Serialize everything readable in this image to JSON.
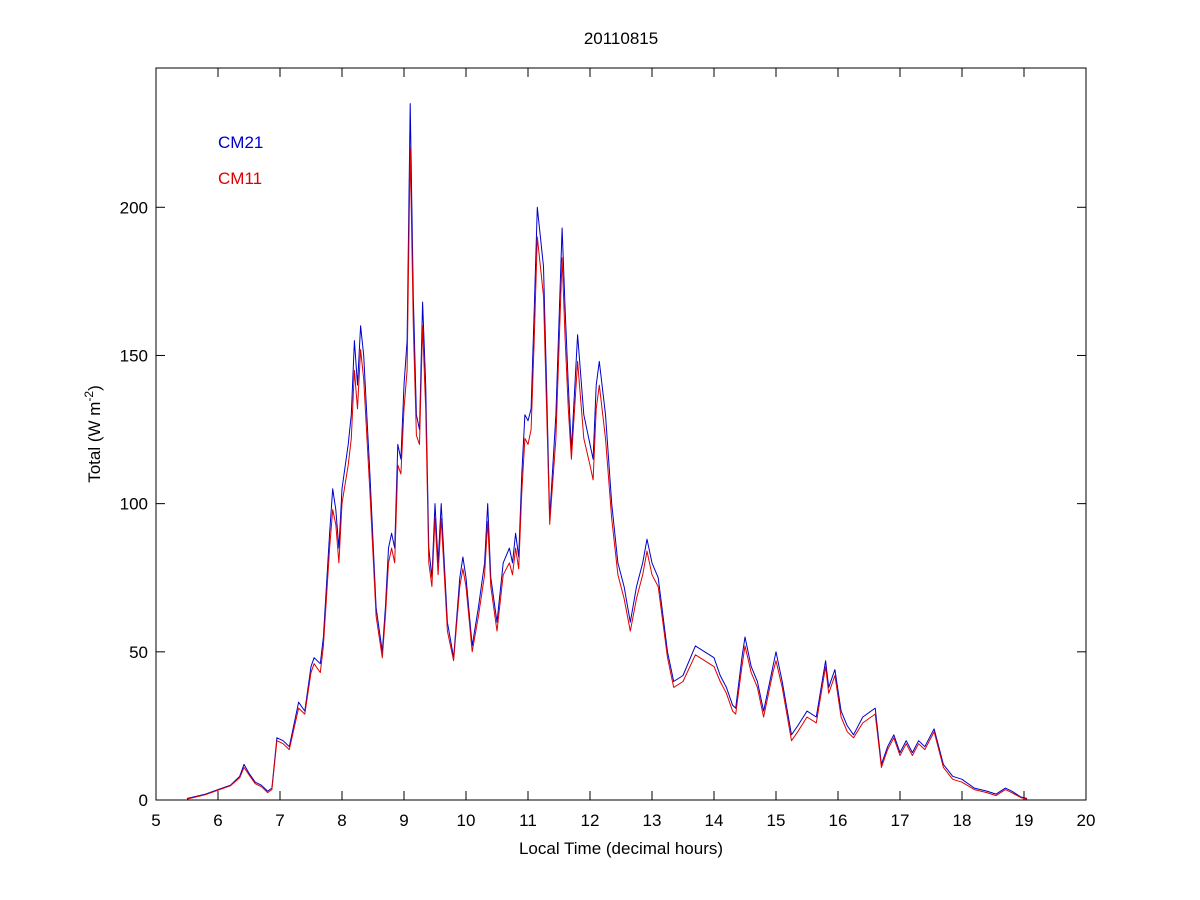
{
  "chart_data": {
    "type": "line",
    "title": "20110815",
    "xlabel": "Local Time (decimal hours)",
    "ylabel": {
      "text": "Total (W m",
      "superscript": "-2",
      "suffix": ")"
    },
    "xlim": [
      5,
      20
    ],
    "ylim": [
      0,
      247
    ],
    "xticks": [
      5,
      6,
      7,
      8,
      9,
      10,
      11,
      12,
      13,
      14,
      15,
      16,
      17,
      18,
      19,
      20
    ],
    "yticks": [
      0,
      50,
      100,
      150,
      200
    ],
    "legend": "upper left",
    "x": [
      5.5,
      5.8,
      6.0,
      6.2,
      6.35,
      6.42,
      6.5,
      6.6,
      6.7,
      6.8,
      6.87,
      6.95,
      7.05,
      7.15,
      7.3,
      7.4,
      7.5,
      7.55,
      7.65,
      7.7,
      7.8,
      7.85,
      7.9,
      7.95,
      8.0,
      8.1,
      8.15,
      8.2,
      8.25,
      8.3,
      8.35,
      8.45,
      8.55,
      8.65,
      8.7,
      8.75,
      8.8,
      8.85,
      8.9,
      8.95,
      9.0,
      9.05,
      9.1,
      9.15,
      9.2,
      9.25,
      9.3,
      9.35,
      9.4,
      9.45,
      9.5,
      9.55,
      9.6,
      9.65,
      9.7,
      9.8,
      9.9,
      9.95,
      10.0,
      10.1,
      10.2,
      10.3,
      10.35,
      10.4,
      10.5,
      10.6,
      10.7,
      10.75,
      10.8,
      10.85,
      10.9,
      10.95,
      11.0,
      11.05,
      11.1,
      11.15,
      11.25,
      11.3,
      11.35,
      11.45,
      11.55,
      11.6,
      11.65,
      11.7,
      11.8,
      11.9,
      12.0,
      12.05,
      12.1,
      12.15,
      12.25,
      12.35,
      12.45,
      12.55,
      12.65,
      12.75,
      12.85,
      12.92,
      13.0,
      13.1,
      13.25,
      13.35,
      13.5,
      13.7,
      13.85,
      14.0,
      14.1,
      14.2,
      14.3,
      14.35,
      14.45,
      14.5,
      14.6,
      14.7,
      14.8,
      14.95,
      15.0,
      15.1,
      15.25,
      15.35,
      15.5,
      15.65,
      15.8,
      15.85,
      15.95,
      16.05,
      16.15,
      16.25,
      16.4,
      16.6,
      16.7,
      16.8,
      16.9,
      17.0,
      17.1,
      17.2,
      17.3,
      17.4,
      17.55,
      17.7,
      17.85,
      18.0,
      18.2,
      18.4,
      18.55,
      18.7,
      18.8,
      18.95,
      19.05
    ],
    "series": [
      {
        "name": "CM21",
        "color": "#0000cc",
        "values": [
          0.5,
          2,
          3.5,
          5,
          8,
          12,
          9,
          6,
          5,
          3,
          4,
          21,
          20,
          18,
          33,
          30,
          45,
          48,
          46,
          55,
          90,
          105,
          98,
          85,
          105,
          120,
          130,
          155,
          140,
          160,
          150,
          110,
          65,
          50,
          65,
          85,
          90,
          85,
          120,
          115,
          140,
          155,
          235,
          170,
          130,
          125,
          168,
          140,
          85,
          75,
          100,
          80,
          100,
          80,
          60,
          48,
          75,
          82,
          75,
          52,
          65,
          80,
          100,
          75,
          60,
          80,
          85,
          80,
          90,
          82,
          110,
          130,
          128,
          132,
          165,
          200,
          180,
          140,
          95,
          130,
          193,
          165,
          140,
          118,
          157,
          130,
          120,
          115,
          140,
          148,
          130,
          100,
          80,
          72,
          60,
          72,
          80,
          88,
          80,
          75,
          50,
          40,
          42,
          52,
          50,
          48,
          42,
          38,
          32,
          31,
          48,
          55,
          45,
          40,
          30,
          45,
          50,
          40,
          22,
          25,
          30,
          28,
          47,
          38,
          44,
          30,
          25,
          22,
          28,
          31,
          12,
          18,
          22,
          16,
          20,
          16,
          20,
          18,
          24,
          12,
          8,
          7,
          4,
          3,
          2,
          4,
          3,
          1,
          0.5
        ]
      },
      {
        "name": "CM11",
        "color": "#dd0000",
        "values": [
          0.3,
          1.8,
          3.3,
          4.8,
          7.5,
          11,
          8.5,
          5.5,
          4.5,
          2.5,
          3.5,
          20,
          19,
          17,
          31,
          29,
          43,
          46,
          43,
          52,
          85,
          98,
          93,
          80,
          100,
          113,
          122,
          145,
          132,
          152,
          142,
          104,
          62,
          48,
          62,
          80,
          85,
          80,
          113,
          110,
          132,
          145,
          220,
          160,
          123,
          120,
          160,
          132,
          80,
          72,
          95,
          76,
          95,
          76,
          57,
          47,
          72,
          78,
          72,
          50,
          62,
          76,
          94,
          72,
          57,
          76,
          80,
          76,
          85,
          78,
          104,
          122,
          120,
          125,
          155,
          190,
          170,
          132,
          93,
          122,
          183,
          155,
          132,
          115,
          148,
          122,
          113,
          108,
          132,
          140,
          122,
          95,
          76,
          68,
          57,
          68,
          76,
          84,
          76,
          72,
          48,
          38,
          40,
          49,
          47,
          45,
          40,
          36,
          30,
          29,
          45,
          52,
          43,
          38,
          28,
          43,
          47,
          38,
          20,
          23,
          28,
          26,
          45,
          36,
          42,
          28,
          23,
          21,
          26,
          29,
          11,
          17,
          21,
          15,
          19,
          15,
          19,
          17,
          23,
          11,
          7,
          6,
          3.5,
          2.5,
          1.5,
          3.5,
          2.5,
          0.8,
          0.3
        ]
      }
    ]
  }
}
